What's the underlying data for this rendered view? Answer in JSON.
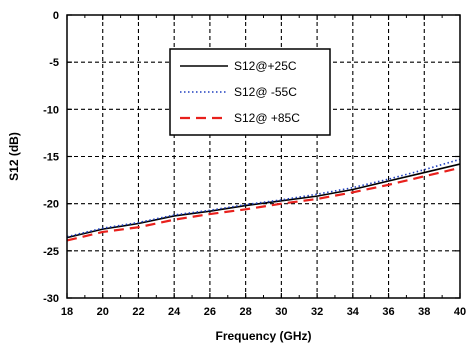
{
  "chart_data": {
    "type": "line",
    "title": "",
    "xlabel": "Frequency (GHz)",
    "ylabel": "S12 (dB)",
    "xlim": [
      18,
      40
    ],
    "ylim": [
      -30,
      0
    ],
    "xticks": [
      18,
      20,
      22,
      24,
      26,
      28,
      30,
      32,
      34,
      36,
      38,
      40
    ],
    "yticks": [
      0,
      -5,
      -10,
      -15,
      -20,
      -25,
      -30
    ],
    "grid": true,
    "legend_position": "top-center",
    "series": [
      {
        "name": "S12@+25C",
        "color": "#000000",
        "style": "solid",
        "x": [
          18,
          20,
          22,
          24,
          26,
          28,
          30,
          32,
          34,
          36,
          38,
          40
        ],
        "y": [
          -23.6,
          -22.7,
          -22.1,
          -21.3,
          -20.8,
          -20.2,
          -19.7,
          -19.2,
          -18.5,
          -17.6,
          -16.7,
          -15.8
        ]
      },
      {
        "name": "S12@ -55C",
        "color": "#1f3fbf",
        "style": "dotted",
        "x": [
          18,
          20,
          22,
          24,
          26,
          28,
          30,
          32,
          34,
          36,
          38,
          40
        ],
        "y": [
          -23.5,
          -22.6,
          -22.0,
          -21.2,
          -20.7,
          -20.1,
          -19.6,
          -19.0,
          -18.3,
          -17.4,
          -16.4,
          -15.3
        ]
      },
      {
        "name": "S12@ +85C",
        "color": "#e8201c",
        "style": "dashed",
        "x": [
          18,
          20,
          22,
          24,
          26,
          28,
          30,
          32,
          34,
          36,
          38,
          40
        ],
        "y": [
          -23.9,
          -23.0,
          -22.5,
          -21.7,
          -21.1,
          -20.6,
          -20.0,
          -19.5,
          -18.8,
          -18.0,
          -17.1,
          -16.2
        ]
      }
    ]
  }
}
